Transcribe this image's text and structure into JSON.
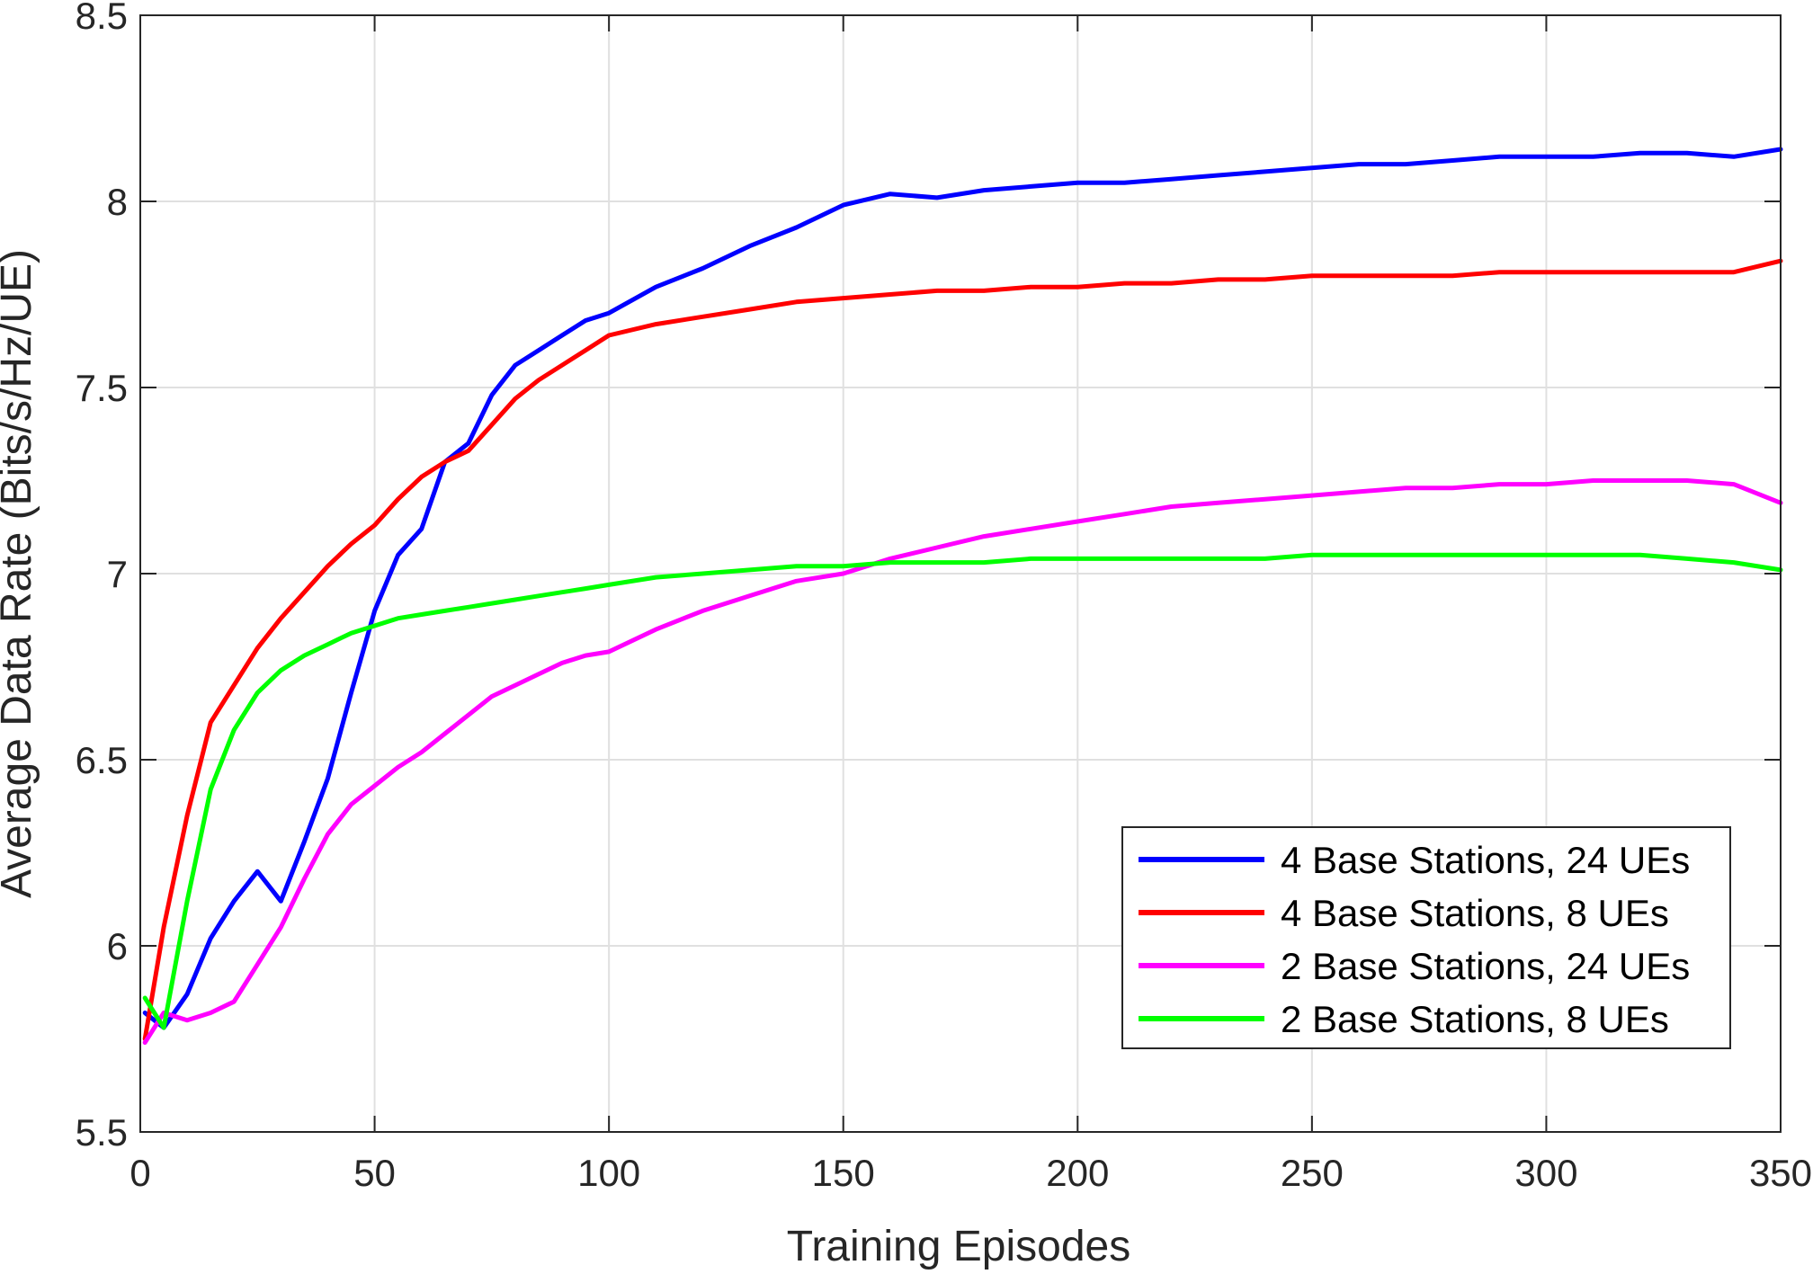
{
  "chart_data": {
    "type": "line",
    "title": "",
    "xlabel": "Training Episodes",
    "ylabel": "Average Data Rate (Bits/s/Hz/UE)",
    "xlim": [
      0,
      350
    ],
    "ylim": [
      5.5,
      8.5
    ],
    "xticks": [
      0,
      50,
      100,
      150,
      200,
      250,
      300,
      350
    ],
    "yticks": [
      5.5,
      6,
      6.5,
      7,
      7.5,
      8,
      8.5
    ],
    "xtick_labels": [
      "0",
      "50",
      "100",
      "150",
      "200",
      "250",
      "300",
      "350"
    ],
    "ytick_labels": [
      "5.5",
      "6",
      "6.5",
      "7",
      "7.5",
      "8",
      "8.5"
    ],
    "grid": true,
    "legend_position": "bottom-right",
    "series": [
      {
        "name": "4 Base Stations, 24 UEs",
        "color": "#0000ff",
        "x": [
          1,
          5,
          10,
          15,
          20,
          25,
          30,
          35,
          40,
          45,
          50,
          55,
          60,
          65,
          70,
          75,
          80,
          85,
          90,
          95,
          100,
          110,
          120,
          130,
          140,
          150,
          160,
          170,
          180,
          190,
          200,
          210,
          220,
          230,
          240,
          250,
          260,
          270,
          280,
          290,
          300,
          310,
          320,
          330,
          340,
          350
        ],
        "y": [
          5.82,
          5.78,
          5.87,
          6.02,
          6.12,
          6.2,
          6.12,
          6.28,
          6.45,
          6.68,
          6.9,
          7.05,
          7.12,
          7.3,
          7.35,
          7.48,
          7.56,
          7.6,
          7.64,
          7.68,
          7.7,
          7.77,
          7.82,
          7.88,
          7.93,
          7.99,
          8.02,
          8.01,
          8.03,
          8.04,
          8.05,
          8.05,
          8.06,
          8.07,
          8.08,
          8.09,
          8.1,
          8.1,
          8.11,
          8.12,
          8.12,
          8.12,
          8.13,
          8.13,
          8.12,
          8.14
        ]
      },
      {
        "name": "4 Base Stations, 8 UEs",
        "color": "#ff0000",
        "x": [
          1,
          5,
          10,
          15,
          20,
          25,
          30,
          35,
          40,
          45,
          50,
          55,
          60,
          65,
          70,
          75,
          80,
          85,
          90,
          95,
          100,
          110,
          120,
          130,
          140,
          150,
          160,
          170,
          180,
          190,
          200,
          210,
          220,
          230,
          240,
          250,
          260,
          270,
          280,
          290,
          300,
          310,
          320,
          330,
          340,
          350
        ],
        "y": [
          5.75,
          6.05,
          6.35,
          6.6,
          6.7,
          6.8,
          6.88,
          6.95,
          7.02,
          7.08,
          7.13,
          7.2,
          7.26,
          7.3,
          7.33,
          7.4,
          7.47,
          7.52,
          7.56,
          7.6,
          7.64,
          7.67,
          7.69,
          7.71,
          7.73,
          7.74,
          7.75,
          7.76,
          7.76,
          7.77,
          7.77,
          7.78,
          7.78,
          7.79,
          7.79,
          7.8,
          7.8,
          7.8,
          7.8,
          7.81,
          7.81,
          7.81,
          7.81,
          7.81,
          7.81,
          7.84
        ]
      },
      {
        "name": "2 Base Stations, 24 UEs",
        "color": "#ff00ff",
        "x": [
          1,
          5,
          10,
          15,
          20,
          25,
          30,
          35,
          40,
          45,
          50,
          55,
          60,
          65,
          70,
          75,
          80,
          85,
          90,
          95,
          100,
          110,
          120,
          130,
          140,
          150,
          160,
          170,
          180,
          190,
          200,
          210,
          220,
          230,
          240,
          250,
          260,
          270,
          280,
          290,
          300,
          310,
          320,
          330,
          340,
          350
        ],
        "y": [
          5.74,
          5.82,
          5.8,
          5.82,
          5.85,
          5.95,
          6.05,
          6.18,
          6.3,
          6.38,
          6.43,
          6.48,
          6.52,
          6.57,
          6.62,
          6.67,
          6.7,
          6.73,
          6.76,
          6.78,
          6.79,
          6.85,
          6.9,
          6.94,
          6.98,
          7.0,
          7.04,
          7.07,
          7.1,
          7.12,
          7.14,
          7.16,
          7.18,
          7.19,
          7.2,
          7.21,
          7.22,
          7.23,
          7.23,
          7.24,
          7.24,
          7.25,
          7.25,
          7.25,
          7.24,
          7.19
        ]
      },
      {
        "name": "2 Base Stations, 8 UEs",
        "color": "#00ff00",
        "x": [
          1,
          5,
          10,
          15,
          20,
          25,
          30,
          35,
          40,
          45,
          50,
          55,
          60,
          65,
          70,
          75,
          80,
          85,
          90,
          95,
          100,
          110,
          120,
          130,
          140,
          150,
          160,
          170,
          180,
          190,
          200,
          210,
          220,
          230,
          240,
          250,
          260,
          270,
          280,
          290,
          300,
          310,
          320,
          330,
          340,
          350
        ],
        "y": [
          5.86,
          5.78,
          6.12,
          6.42,
          6.58,
          6.68,
          6.74,
          6.78,
          6.81,
          6.84,
          6.86,
          6.88,
          6.89,
          6.9,
          6.91,
          6.92,
          6.93,
          6.94,
          6.95,
          6.96,
          6.97,
          6.99,
          7.0,
          7.01,
          7.02,
          7.02,
          7.03,
          7.03,
          7.03,
          7.04,
          7.04,
          7.04,
          7.04,
          7.04,
          7.04,
          7.05,
          7.05,
          7.05,
          7.05,
          7.05,
          7.05,
          7.05,
          7.05,
          7.04,
          7.03,
          7.01
        ]
      }
    ]
  }
}
